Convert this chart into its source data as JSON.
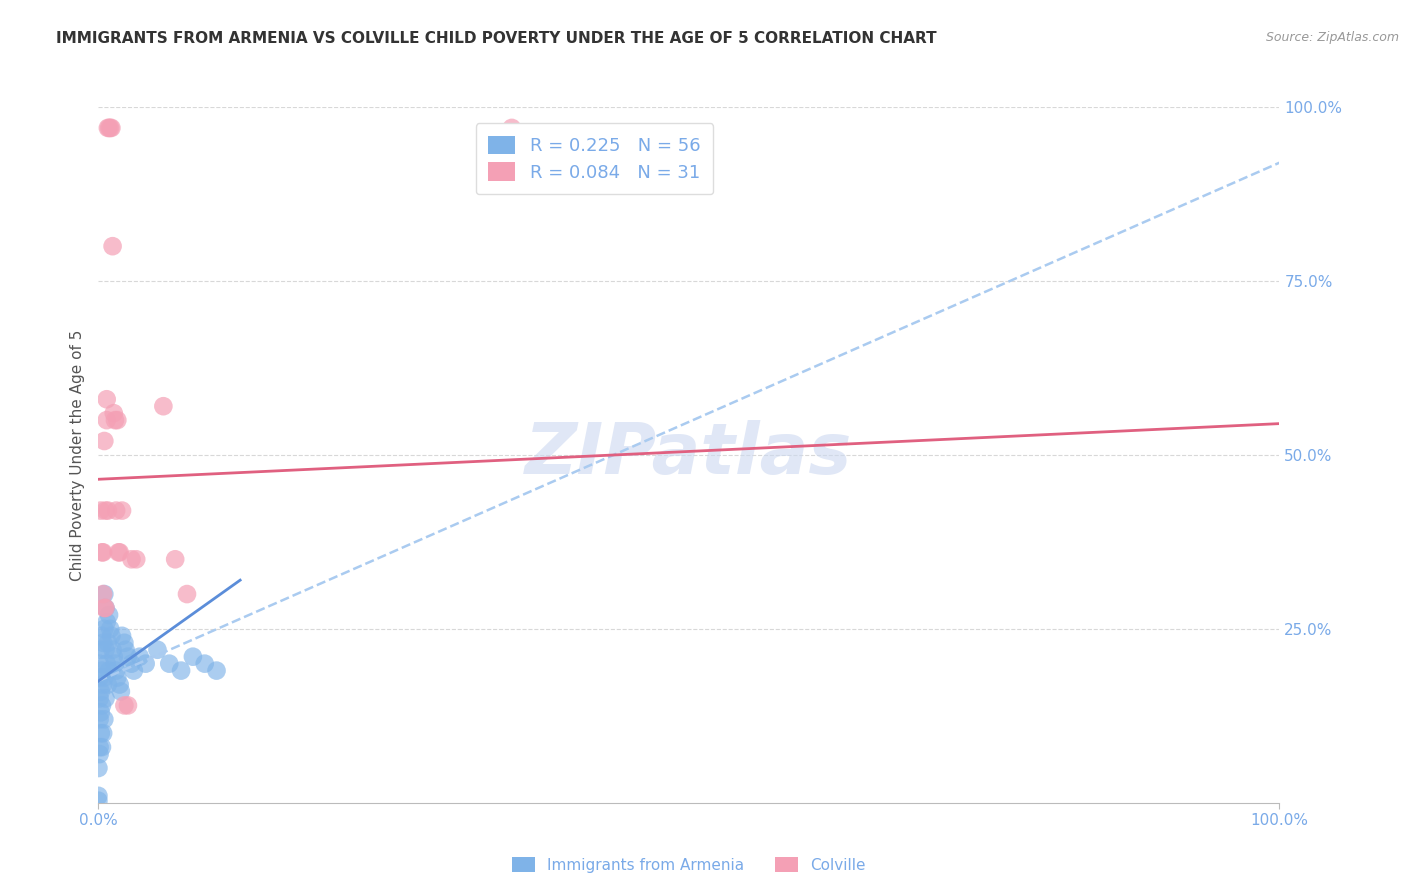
{
  "title": "IMMIGRANTS FROM ARMENIA VS COLVILLE CHILD POVERTY UNDER THE AGE OF 5 CORRELATION CHART",
  "source": "Source: ZipAtlas.com",
  "ylabel": "Child Poverty Under the Age of 5",
  "xlim": [
    0,
    1.0
  ],
  "ylim": [
    0,
    1.0
  ],
  "blue_scatter_x": [
    0.0,
    0.0,
    0.001,
    0.001,
    0.001,
    0.001,
    0.001,
    0.002,
    0.002,
    0.002,
    0.002,
    0.003,
    0.003,
    0.003,
    0.003,
    0.004,
    0.004,
    0.004,
    0.005,
    0.005,
    0.005,
    0.005,
    0.006,
    0.006,
    0.006,
    0.007,
    0.007,
    0.008,
    0.008,
    0.009,
    0.009,
    0.01,
    0.011,
    0.012,
    0.013,
    0.014,
    0.015,
    0.016,
    0.018,
    0.019,
    0.02,
    0.022,
    0.023,
    0.025,
    0.028,
    0.03,
    0.035,
    0.04,
    0.05,
    0.06,
    0.07,
    0.08,
    0.09,
    0.1,
    0.0,
    0.001
  ],
  "blue_scatter_y": [
    0.01,
    0.05,
    0.08,
    0.12,
    0.15,
    0.18,
    0.2,
    0.1,
    0.13,
    0.16,
    0.22,
    0.08,
    0.14,
    0.19,
    0.24,
    0.1,
    0.17,
    0.23,
    0.12,
    0.18,
    0.25,
    0.3,
    0.15,
    0.22,
    0.28,
    0.2,
    0.26,
    0.17,
    0.23,
    0.19,
    0.27,
    0.25,
    0.24,
    0.22,
    0.21,
    0.2,
    0.19,
    0.18,
    0.17,
    0.16,
    0.24,
    0.23,
    0.22,
    0.21,
    0.2,
    0.19,
    0.21,
    0.2,
    0.22,
    0.2,
    0.19,
    0.21,
    0.2,
    0.19,
    0.003,
    0.07
  ],
  "pink_scatter_x": [
    0.002,
    0.003,
    0.004,
    0.005,
    0.006,
    0.007,
    0.007,
    0.008,
    0.009,
    0.01,
    0.011,
    0.012,
    0.013,
    0.014,
    0.015,
    0.016,
    0.017,
    0.018,
    0.02,
    0.022,
    0.025,
    0.028,
    0.032,
    0.055,
    0.065,
    0.075,
    0.35,
    0.004,
    0.005,
    0.006,
    0.008
  ],
  "pink_scatter_y": [
    0.42,
    0.36,
    0.36,
    0.52,
    0.42,
    0.58,
    0.55,
    0.97,
    0.97,
    0.97,
    0.97,
    0.8,
    0.56,
    0.55,
    0.42,
    0.55,
    0.36,
    0.36,
    0.42,
    0.14,
    0.14,
    0.35,
    0.35,
    0.57,
    0.35,
    0.3,
    0.97,
    0.3,
    0.28,
    0.28,
    0.42
  ],
  "blue_solid_line_x": [
    0.0,
    0.12
  ],
  "blue_solid_line_y": [
    0.175,
    0.32
  ],
  "blue_dashed_line_x": [
    0.0,
    1.0
  ],
  "blue_dashed_line_y": [
    0.175,
    0.92
  ],
  "pink_line_x": [
    0.0,
    1.0
  ],
  "pink_line_y": [
    0.465,
    0.545
  ],
  "blue_color": "#7fb3e8",
  "pink_color": "#f4a0b5",
  "blue_solid_color": "#5b8dd9",
  "blue_dashed_color": "#aacbf0",
  "pink_line_color": "#e06080",
  "grid_color": "#d8d8d8",
  "title_color": "#333333",
  "axis_color": "#7aaae8",
  "watermark": "ZIPatlas",
  "watermark_color": "#ccd8f0",
  "background_color": "#ffffff",
  "title_fontsize": 11,
  "axis_fontsize": 11,
  "tick_fontsize": 11
}
